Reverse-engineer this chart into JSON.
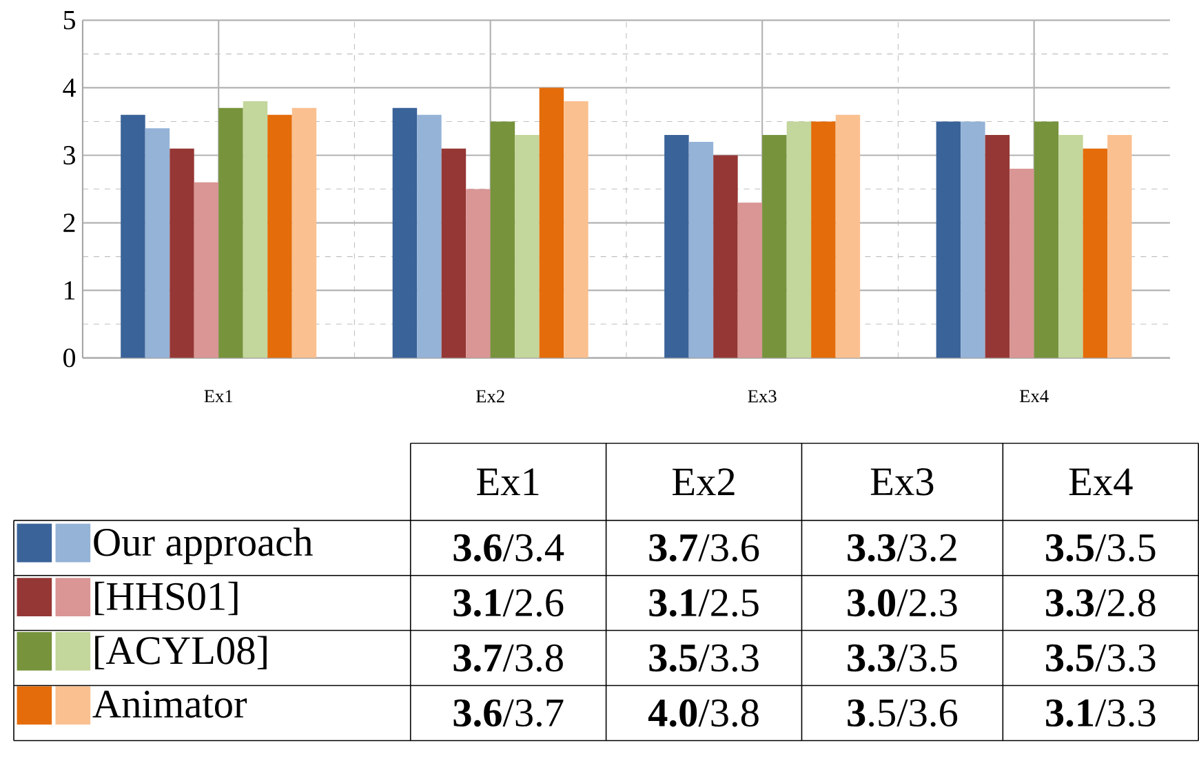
{
  "chart_data": {
    "type": "bar",
    "categories": [
      "Ex1",
      "Ex2",
      "Ex3",
      "Ex4"
    ],
    "series": [
      {
        "color": "#3a6399",
        "values": [
          3.6,
          3.7,
          3.3,
          3.5
        ]
      },
      {
        "name": "Our approach",
        "color": "#95b3d7",
        "values": [
          3.4,
          3.6,
          3.2,
          3.5
        ]
      },
      {
        "color": "#953735",
        "values": [
          3.1,
          3.1,
          3.0,
          3.3
        ]
      },
      {
        "name": "[HHS01]",
        "color": "#d99694",
        "values": [
          2.6,
          2.5,
          2.3,
          2.8
        ]
      },
      {
        "color": "#77933c",
        "values": [
          3.7,
          3.5,
          3.3,
          3.5
        ]
      },
      {
        "name": "[ACYL08]",
        "color": "#c3d69b",
        "values": [
          3.8,
          3.3,
          3.5,
          3.3
        ]
      },
      {
        "color": "#e46c0a",
        "values": [
          3.6,
          4.0,
          3.5,
          3.1
        ]
      },
      {
        "name": "Animator",
        "color": "#fac090",
        "values": [
          3.7,
          3.8,
          3.6,
          3.3
        ]
      }
    ],
    "ylim": [
      0,
      5
    ],
    "yticks": [
      0,
      1,
      2,
      3,
      4,
      5
    ],
    "grid": true,
    "legend": "bottom",
    "annotations": [
      "**3.6**/3.4",
      "**3.7**/3.6",
      "**3.3**/3.2",
      "**3.5**/3.5",
      "**3.1**/2.6",
      "**3.1**/2.5",
      "**3.0**/2.3",
      "**3.3**/2.8",
      "**3.7**/3.8",
      "**3.5**/3.3",
      "**3.3**/3.5",
      "**3.5**/3.3",
      "**3.6**/3.7",
      "**4.0**/3.8",
      "**3**.5/3.6",
      "**3.1**/3.3"
    ]
  }
}
